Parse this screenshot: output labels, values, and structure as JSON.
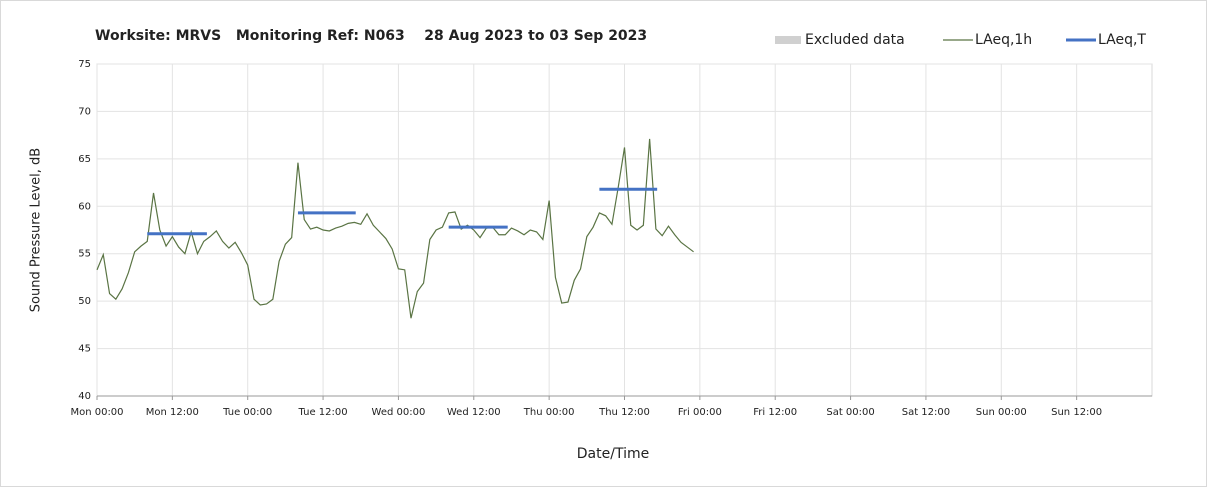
{
  "chart_data": {
    "type": "line",
    "title": "Worksite: MRVS   Monitoring Ref: N063    28 Aug 2023 to 03 Sep 2023",
    "xlabel": "Date/Time",
    "ylabel": "Sound Pressure Level, dB",
    "xlim": [
      0,
      168
    ],
    "ylim": [
      40,
      75
    ],
    "yticks": [
      40,
      45,
      50,
      55,
      60,
      65,
      70,
      75
    ],
    "xticks": [
      {
        "value": 0,
        "label": "Mon 00:00"
      },
      {
        "value": 12,
        "label": "Mon 12:00"
      },
      {
        "value": 24,
        "label": "Tue 00:00"
      },
      {
        "value": 36,
        "label": "Tue 12:00"
      },
      {
        "value": 48,
        "label": "Wed 00:00"
      },
      {
        "value": 60,
        "label": "Wed 12:00"
      },
      {
        "value": 72,
        "label": "Thu 00:00"
      },
      {
        "value": 84,
        "label": "Thu 12:00"
      },
      {
        "value": 96,
        "label": "Fri 00:00"
      },
      {
        "value": 108,
        "label": "Fri 12:00"
      },
      {
        "value": 120,
        "label": "Sat 00:00"
      },
      {
        "value": 132,
        "label": "Sat 12:00"
      },
      {
        "value": 144,
        "label": "Sun 00:00"
      },
      {
        "value": 156,
        "label": "Sun 12:00"
      }
    ],
    "grid": true,
    "legend": "top-right",
    "excluded": {
      "name": "Excluded data",
      "color": "#d0d0d0"
    },
    "series": [
      {
        "name": "LAeq,1h",
        "color": "#5a7444",
        "x": [
          0,
          1,
          2,
          3,
          4,
          5,
          6,
          7,
          8,
          9,
          10,
          11,
          12,
          13,
          14,
          15,
          16,
          17,
          18,
          19,
          20,
          21,
          22,
          23,
          24,
          25,
          26,
          27,
          28,
          29,
          30,
          31,
          32,
          33,
          34,
          35,
          36,
          37,
          38,
          39,
          40,
          41,
          42,
          43,
          44,
          45,
          46,
          47,
          48,
          49,
          50,
          51,
          52,
          53,
          54,
          55,
          56,
          57,
          58,
          59,
          60,
          61,
          62,
          63,
          64,
          65,
          66,
          67,
          68,
          69,
          70,
          71,
          72,
          73,
          74,
          75,
          76,
          77,
          78,
          79,
          80,
          81,
          82,
          83,
          84,
          85,
          86,
          87,
          88,
          89,
          90,
          91,
          92,
          93,
          94,
          95
        ],
        "values": [
          53.3,
          54.9,
          50.8,
          50.2,
          51.3,
          53,
          55.2,
          55.8,
          56.3,
          61.4,
          57.5,
          55.8,
          56.8,
          55.7,
          55,
          57.3,
          55,
          56.3,
          56.8,
          57.4,
          56.3,
          55.6,
          56.2,
          55.1,
          53.8,
          50.2,
          49.6,
          49.7,
          50.2,
          54.2,
          56,
          56.7,
          64.6,
          58.6,
          57.6,
          57.8,
          57.5,
          57.4,
          57.7,
          57.9,
          58.2,
          58.3,
          58.1,
          59.2,
          58,
          57.3,
          56.6,
          55.5,
          53.4,
          53.3,
          48.2,
          51,
          51.9,
          56.5,
          57.5,
          57.8,
          59.3,
          59.4,
          57.6,
          58,
          57.5,
          56.7,
          57.7,
          57.8,
          57,
          57,
          57.7,
          57.4,
          57,
          57.5,
          57.3,
          56.5,
          60.6,
          52.5,
          49.8,
          49.9,
          52.2,
          53.4,
          56.8,
          57.8,
          59.3,
          59,
          58.1,
          62,
          66.2,
          58,
          57.5,
          58,
          67.1,
          57.6,
          56.9,
          57.9,
          57,
          56.2,
          55.7,
          55.2
        ]
      },
      {
        "name": "LAeq,T",
        "color": "#4472c4",
        "segments": [
          {
            "x": [
              8,
              17.5
            ],
            "value": 57.1
          },
          {
            "x": [
              32,
              41.2
            ],
            "value": 59.3
          },
          {
            "x": [
              56,
              65.4
            ],
            "value": 57.8
          },
          {
            "x": [
              80,
              89.2
            ],
            "value": 61.8
          }
        ]
      }
    ]
  }
}
